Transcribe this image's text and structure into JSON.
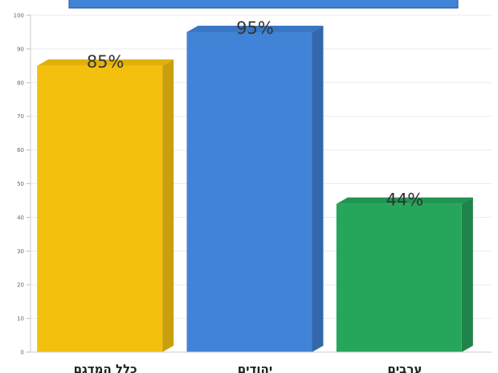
{
  "chart_data": {
    "type": "bar",
    "categories": [
      "כלל המדגם",
      "יהודים",
      "ערבים"
    ],
    "values": [
      85,
      95,
      44
    ],
    "value_labels": [
      "85%",
      "95%",
      "44%"
    ],
    "colors": {
      "front": [
        "#F3C00E",
        "#4183D7",
        "#26A65B"
      ],
      "side": [
        "#C9A00B",
        "#3468AB",
        "#1E8449"
      ],
      "top": [
        "#E0B00D",
        "#3A76C4",
        "#229453"
      ]
    },
    "ylim": [
      0,
      100
    ],
    "yticks": [
      0,
      10,
      20,
      30,
      40,
      50,
      60,
      70,
      80,
      90,
      100
    ],
    "grid": true,
    "title_banner_color": "#4183D7"
  }
}
